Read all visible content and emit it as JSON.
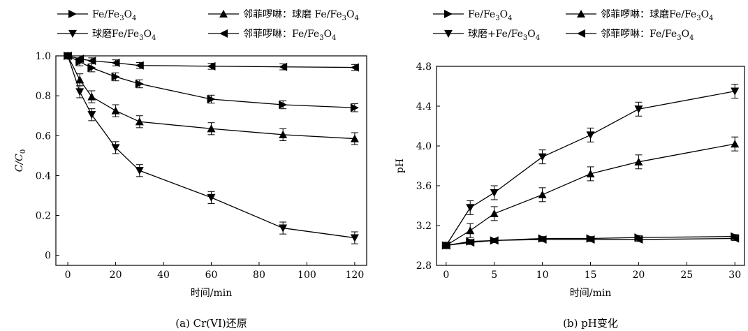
{
  "chart_data": [
    {
      "type": "line",
      "caption": "(a) Cr(VI)还原",
      "xlabel": "时间/min",
      "ylabel": "C/C",
      "ylabel_sub": "0",
      "xlim": [
        -5,
        125
      ],
      "ylim": [
        -0.05,
        1.0
      ],
      "xticks": [
        0,
        20,
        40,
        60,
        80,
        100,
        120
      ],
      "yticks": [
        0,
        0.2,
        0.4,
        0.6,
        0.8,
        1.0
      ],
      "ytick_labels": [
        "0",
        "0.2",
        "0.4",
        "0.6",
        "0.8",
        "1.0"
      ],
      "series": [
        {
          "name": "Fe/Fe3O4",
          "legend_parts": [
            "Fe/Fe",
            "3",
            "O",
            "4"
          ],
          "marker": "right",
          "x": [
            0,
            5,
            10,
            20,
            30,
            60,
            90,
            120
          ],
          "y": [
            1.0,
            0.97,
            0.94,
            0.895,
            0.86,
            0.783,
            0.755,
            0.74
          ],
          "err": 0.02
        },
        {
          "name": "邻菲啰啉：球磨 Fe/Fe3O4",
          "legend_parts": [
            "邻菲啰啉：球磨 Fe/Fe",
            "3",
            "O",
            "4"
          ],
          "marker": "up",
          "x": [
            0,
            5,
            10,
            20,
            30,
            60,
            90,
            120
          ],
          "y": [
            1.0,
            0.88,
            0.795,
            0.725,
            0.67,
            0.635,
            0.605,
            0.585
          ],
          "err": 0.03
        },
        {
          "name": "球磨Fe/Fe3O4",
          "legend_parts": [
            "球磨Fe/Fe",
            "3",
            "O",
            "4"
          ],
          "marker": "down",
          "x": [
            0,
            5,
            10,
            20,
            30,
            60,
            90,
            120
          ],
          "y": [
            1.0,
            0.82,
            0.705,
            0.54,
            0.425,
            0.29,
            0.137,
            0.088
          ],
          "err": 0.03
        },
        {
          "name": "邻菲啰啉：Fe/Fe3O4",
          "legend_parts": [
            "邻菲啰啉：Fe/Fe",
            "3",
            "O",
            "4"
          ],
          "marker": "left",
          "x": [
            0,
            5,
            10,
            20,
            30,
            60,
            90,
            120
          ],
          "y": [
            1.0,
            0.985,
            0.975,
            0.965,
            0.952,
            0.948,
            0.945,
            0.942
          ],
          "err": 0.015
        }
      ]
    },
    {
      "type": "line",
      "caption": "(b) pH变化",
      "xlabel": "时间/min",
      "ylabel": "pH",
      "xlim": [
        -1,
        31
      ],
      "ylim": [
        2.8,
        4.8
      ],
      "xticks": [
        0,
        5,
        10,
        15,
        20,
        25,
        30
      ],
      "yticks": [
        2.8,
        3.2,
        3.6,
        4.0,
        4.4,
        4.8
      ],
      "ytick_labels": [
        "2.8",
        "3.2",
        "3.6",
        "4.0",
        "4.4",
        "4.8"
      ],
      "series": [
        {
          "name": "Fe/Fe3O4",
          "legend_parts": [
            "Fe/Fe",
            "3",
            "O",
            "4"
          ],
          "marker": "right",
          "x": [
            0,
            2.5,
            5,
            10,
            15,
            20,
            30
          ],
          "y": [
            3.0,
            3.04,
            3.05,
            3.07,
            3.07,
            3.08,
            3.09
          ],
          "err": 0.02
        },
        {
          "name": "邻菲啰啉：球磨Fe/Fe3O4",
          "legend_parts": [
            "邻菲啰啉：球磨Fe/Fe",
            "3",
            "O",
            "4"
          ],
          "marker": "up",
          "x": [
            0,
            2.5,
            5,
            10,
            15,
            20,
            30
          ],
          "y": [
            3.0,
            3.15,
            3.32,
            3.51,
            3.72,
            3.84,
            4.02
          ],
          "err": 0.07
        },
        {
          "name": "球磨+Fe/Fe3O4",
          "legend_parts": [
            "球磨+Fe/Fe",
            "3",
            "O",
            "4"
          ],
          "marker": "down",
          "x": [
            0,
            2.5,
            5,
            10,
            15,
            20,
            30
          ],
          "y": [
            3.0,
            3.38,
            3.53,
            3.89,
            4.11,
            4.37,
            4.55
          ],
          "err": 0.07
        },
        {
          "name": "邻菲啰啉：Fe/Fe3O4",
          "legend_parts": [
            "邻菲啰啉：Fe/Fe",
            "3",
            "O",
            "4"
          ],
          "marker": "left",
          "x": [
            0,
            2.5,
            5,
            10,
            15,
            20,
            30
          ],
          "y": [
            3.0,
            3.03,
            3.05,
            3.06,
            3.06,
            3.06,
            3.07
          ],
          "err": 0.02
        }
      ]
    }
  ]
}
